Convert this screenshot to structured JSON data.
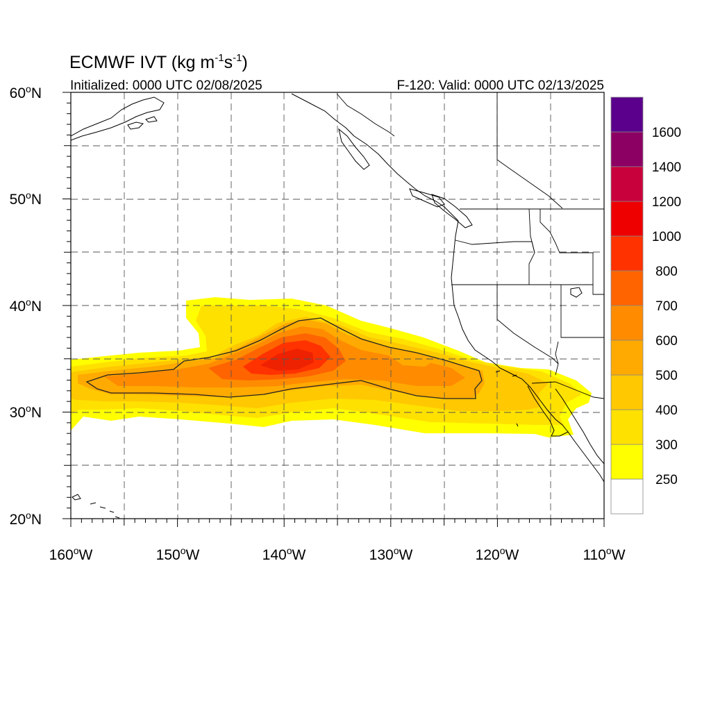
{
  "title": {
    "main": "ECMWF IVT (kg m",
    "sup1": "-1",
    "mid": "s",
    "sup2": "-1",
    "close": ")"
  },
  "init_label": "Initialized: 0000 UTC 02/08/2025",
  "valid_label": "F-120: Valid: 0000 UTC 02/13/2025",
  "map": {
    "lon_range": [
      -160,
      -110
    ],
    "lat_range": [
      20,
      60
    ],
    "lat_ticks": [
      {
        "value": 60,
        "num": "60",
        "unit": "N"
      },
      {
        "value": 50,
        "num": "50",
        "unit": "N"
      },
      {
        "value": 40,
        "num": "40",
        "unit": "N"
      },
      {
        "value": 30,
        "num": "30",
        "unit": "N"
      },
      {
        "value": 20,
        "num": "20",
        "unit": "N"
      }
    ],
    "lon_ticks": [
      {
        "value": -160,
        "num": "160",
        "unit": "W"
      },
      {
        "value": -150,
        "num": "150",
        "unit": "W"
      },
      {
        "value": -140,
        "num": "140",
        "unit": "W"
      },
      {
        "value": -130,
        "num": "130",
        "unit": "W"
      },
      {
        "value": -120,
        "num": "120",
        "unit": "W"
      },
      {
        "value": -110,
        "num": "110",
        "unit": "W"
      }
    ],
    "grid": "dashed every 5 degrees",
    "contour_value": 500
  },
  "colorbar": {
    "levels": [
      "250",
      "300",
      "400",
      "500",
      "600",
      "700",
      "800",
      "1000",
      "1200",
      "1400",
      "1600"
    ],
    "colors": [
      "#ffffff",
      "#ffff00",
      "#ffe100",
      "#ffc800",
      "#ffaa00",
      "#ff8c00",
      "#ff6400",
      "#ff3200",
      "#ee0000",
      "#c8003c",
      "#8c0064",
      "#5a008c"
    ]
  }
}
